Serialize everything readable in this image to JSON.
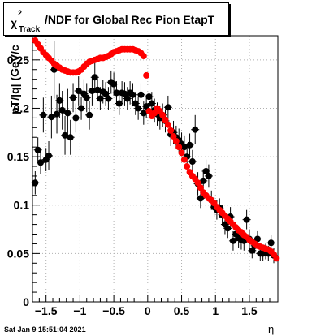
{
  "title": {
    "chi": "χ",
    "superscript": "2",
    "subscript": "Track",
    "text": "/NDF for Global Rec Pion EtapT"
  },
  "timestamp": "Sat Jan  9 15:51:04 2021",
  "chart_data": {
    "type": "scatter",
    "xlabel": "η",
    "ylabel": "pT/|q| (GeV/c",
    "xlim": [
      -1.7,
      1.92
    ],
    "ylim": [
      0,
      0.275
    ],
    "grid": true,
    "xticks": [
      -1.5,
      -1,
      -0.5,
      0,
      0.5,
      1,
      1.5
    ],
    "xtick_labels": [
      "−1.5",
      "−1",
      "−0.5",
      "0",
      "0.5",
      "1",
      "1.5"
    ],
    "yticks": [
      0,
      0.05,
      0.1,
      0.15,
      0.2,
      0.25
    ],
    "ytick_labels": [
      "0",
      "0.05",
      "0.1",
      "0.15",
      "0.2",
      "0.25"
    ],
    "series": [
      {
        "color": "#000000",
        "points": [
          [
            -1.66,
            0.123,
            0.012
          ],
          [
            -1.62,
            0.157,
            0.013
          ],
          [
            -1.58,
            0.144,
            0.012
          ],
          [
            -1.54,
            0.193,
            0.018
          ],
          [
            -1.5,
            0.147,
            0.012
          ],
          [
            -1.46,
            0.151,
            0.015
          ],
          [
            -1.42,
            0.191,
            0.022
          ],
          [
            -1.38,
            0.24,
            0.03
          ],
          [
            -1.34,
            0.194,
            0.02
          ],
          [
            -1.3,
            0.208,
            0.018
          ],
          [
            -1.26,
            0.198,
            0.02
          ],
          [
            -1.22,
            0.172,
            0.02
          ],
          [
            -1.18,
            0.195,
            0.025
          ],
          [
            -1.14,
            0.17,
            0.018
          ],
          [
            -1.1,
            0.211,
            0.015
          ],
          [
            -1.06,
            0.19,
            0.015
          ],
          [
            -1.02,
            0.218,
            0.015
          ],
          [
            -0.98,
            0.2,
            0.012
          ],
          [
            -0.94,
            0.215,
            0.015
          ],
          [
            -0.9,
            0.211,
            0.015
          ],
          [
            -0.86,
            0.193,
            0.015
          ],
          [
            -0.82,
            0.218,
            0.015
          ],
          [
            -0.78,
            0.232,
            0.015
          ],
          [
            -0.74,
            0.219,
            0.012
          ],
          [
            -0.7,
            0.21,
            0.012
          ],
          [
            -0.66,
            0.217,
            0.012
          ],
          [
            -0.62,
            0.215,
            0.012
          ],
          [
            -0.58,
            0.21,
            0.012
          ],
          [
            -0.54,
            0.227,
            0.012
          ],
          [
            -0.5,
            0.225,
            0.012
          ],
          [
            -0.46,
            0.216,
            0.012
          ],
          [
            -0.42,
            0.205,
            0.012
          ],
          [
            -0.38,
            0.216,
            0.012
          ],
          [
            -0.34,
            0.215,
            0.012
          ],
          [
            -0.3,
            0.21,
            0.012
          ],
          [
            -0.26,
            0.216,
            0.012
          ],
          [
            -0.22,
            0.214,
            0.012
          ],
          [
            -0.18,
            0.205,
            0.012
          ],
          [
            -0.14,
            0.2,
            0.012
          ],
          [
            -0.1,
            0.214,
            0.012
          ],
          [
            -0.06,
            0.195,
            0.012
          ],
          [
            -0.02,
            0.202,
            0.012
          ],
          [
            0.02,
            0.212,
            0.012
          ],
          [
            0.06,
            0.205,
            0.012
          ],
          [
            0.1,
            0.198,
            0.012
          ],
          [
            0.14,
            0.194,
            0.012
          ],
          [
            0.18,
            0.19,
            0.012
          ],
          [
            0.22,
            0.193,
            0.012
          ],
          [
            0.26,
            0.187,
            0.012
          ],
          [
            0.3,
            0.201,
            0.012
          ],
          [
            0.34,
            0.173,
            0.012
          ],
          [
            0.38,
            0.175,
            0.012
          ],
          [
            0.42,
            0.17,
            0.012
          ],
          [
            0.46,
            0.167,
            0.012
          ],
          [
            0.5,
            0.163,
            0.012
          ],
          [
            0.54,
            0.16,
            0.012
          ],
          [
            0.58,
            0.15,
            0.012
          ],
          [
            0.62,
            0.162,
            0.012
          ],
          [
            0.66,
            0.145,
            0.012
          ],
          [
            0.7,
            0.178,
            0.015
          ],
          [
            0.74,
            0.122,
            0.012
          ],
          [
            0.78,
            0.107,
            0.01
          ],
          [
            0.82,
            0.125,
            0.012
          ],
          [
            0.86,
            0.135,
            0.012
          ],
          [
            0.9,
            0.13,
            0.012
          ],
          [
            0.94,
            0.105,
            0.01
          ],
          [
            0.98,
            0.098,
            0.01
          ],
          [
            1.02,
            0.095,
            0.01
          ],
          [
            1.06,
            0.097,
            0.01
          ],
          [
            1.1,
            0.09,
            0.01
          ],
          [
            1.14,
            0.08,
            0.01
          ],
          [
            1.18,
            0.076,
            0.01
          ],
          [
            1.22,
            0.088,
            0.01
          ],
          [
            1.26,
            0.063,
            0.01
          ],
          [
            1.3,
            0.07,
            0.01
          ],
          [
            1.34,
            0.066,
            0.01
          ],
          [
            1.38,
            0.064,
            0.01
          ],
          [
            1.42,
            0.063,
            0.01
          ],
          [
            1.46,
            0.085,
            0.01
          ],
          [
            1.5,
            0.065,
            0.01
          ],
          [
            1.54,
            0.053,
            0.008
          ],
          [
            1.58,
            0.058,
            0.008
          ],
          [
            1.62,
            0.065,
            0.008
          ],
          [
            1.66,
            0.05,
            0.008
          ],
          [
            1.7,
            0.05,
            0.008
          ],
          [
            1.74,
            0.052,
            0.008
          ],
          [
            1.78,
            0.05,
            0.008
          ],
          [
            1.82,
            0.061,
            0.008
          ],
          [
            1.86,
            0.048,
            0.008
          ]
        ]
      },
      {
        "color": "#ff0000",
        "points": [
          [
            -1.66,
            0.27
          ],
          [
            -1.62,
            0.266
          ],
          [
            -1.58,
            0.262
          ],
          [
            -1.54,
            0.258
          ],
          [
            -1.5,
            0.255
          ],
          [
            -1.46,
            0.252
          ],
          [
            -1.42,
            0.249
          ],
          [
            -1.38,
            0.246
          ],
          [
            -1.34,
            0.244
          ],
          [
            -1.3,
            0.242
          ],
          [
            -1.26,
            0.24
          ],
          [
            -1.22,
            0.239
          ],
          [
            -1.18,
            0.238
          ],
          [
            -1.14,
            0.237
          ],
          [
            -1.1,
            0.237
          ],
          [
            -1.06,
            0.237
          ],
          [
            -1.02,
            0.238
          ],
          [
            -0.98,
            0.24
          ],
          [
            -0.94,
            0.243
          ],
          [
            -0.9,
            0.246
          ],
          [
            -0.86,
            0.248
          ],
          [
            -0.82,
            0.249
          ],
          [
            -0.78,
            0.25
          ],
          [
            -0.74,
            0.251
          ],
          [
            -0.7,
            0.252
          ],
          [
            -0.66,
            0.252
          ],
          [
            -0.62,
            0.253
          ],
          [
            -0.58,
            0.254
          ],
          [
            -0.54,
            0.256
          ],
          [
            -0.5,
            0.258
          ],
          [
            -0.46,
            0.259
          ],
          [
            -0.42,
            0.26
          ],
          [
            -0.38,
            0.261
          ],
          [
            -0.34,
            0.261
          ],
          [
            -0.3,
            0.261
          ],
          [
            -0.26,
            0.261
          ],
          [
            -0.22,
            0.261
          ],
          [
            -0.18,
            0.26
          ],
          [
            -0.14,
            0.259
          ],
          [
            -0.1,
            0.257
          ],
          [
            -0.06,
            0.254
          ],
          [
            -0.02,
            0.234
          ],
          [
            0.02,
            0.197
          ],
          [
            0.06,
            0.192
          ],
          [
            0.1,
            0.195
          ],
          [
            0.14,
            0.2
          ],
          [
            0.18,
            0.197
          ],
          [
            0.22,
            0.193
          ],
          [
            0.26,
            0.188
          ],
          [
            0.3,
            0.183
          ],
          [
            0.34,
            0.177
          ],
          [
            0.38,
            0.171
          ],
          [
            0.42,
            0.166
          ],
          [
            0.46,
            0.16
          ],
          [
            0.5,
            0.154
          ],
          [
            0.54,
            0.147
          ],
          [
            0.58,
            0.14
          ],
          [
            0.62,
            0.134
          ],
          [
            0.66,
            0.13
          ],
          [
            0.7,
            0.127
          ],
          [
            0.74,
            0.123
          ],
          [
            0.78,
            0.118
          ],
          [
            0.82,
            0.113
          ],
          [
            0.86,
            0.11
          ],
          [
            0.9,
            0.107
          ],
          [
            0.94,
            0.105
          ],
          [
            0.98,
            0.102
          ],
          [
            1.02,
            0.098
          ],
          [
            1.06,
            0.095
          ],
          [
            1.1,
            0.092
          ],
          [
            1.14,
            0.089
          ],
          [
            1.18,
            0.086
          ],
          [
            1.22,
            0.083
          ],
          [
            1.26,
            0.08
          ],
          [
            1.3,
            0.077
          ],
          [
            1.34,
            0.074
          ],
          [
            1.38,
            0.072
          ],
          [
            1.42,
            0.069
          ],
          [
            1.46,
            0.067
          ],
          [
            1.5,
            0.064
          ],
          [
            1.54,
            0.062
          ],
          [
            1.58,
            0.06
          ],
          [
            1.62,
            0.058
          ],
          [
            1.66,
            0.057
          ],
          [
            1.7,
            0.056
          ],
          [
            1.74,
            0.055
          ],
          [
            1.78,
            0.054
          ],
          [
            1.82,
            0.052
          ],
          [
            1.86,
            0.049
          ],
          [
            1.9,
            0.045
          ]
        ]
      }
    ]
  }
}
